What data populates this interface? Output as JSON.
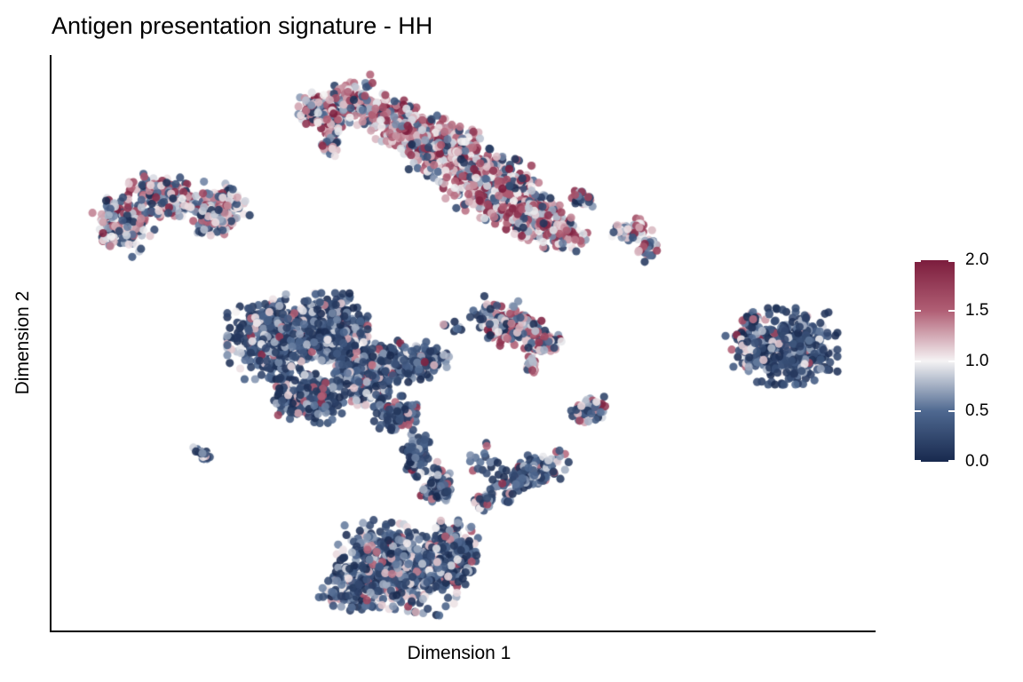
{
  "title": "Antigen presentation signature - HH",
  "axes": {
    "x_label": "Dimension 1",
    "y_label": "Dimension 2",
    "ticks_shown": false
  },
  "colorbar": {
    "orientation": "vertical",
    "min": 0.0,
    "max": 2.0,
    "tick_labels": [
      "2.0",
      "1.5",
      "1.0",
      "0.5",
      "0.0"
    ],
    "tick_values": [
      2.0,
      1.5,
      1.0,
      0.5,
      0.0
    ],
    "stops": [
      {
        "value": 0.0,
        "color": "#18294e"
      },
      {
        "value": 0.5,
        "color": "#4e6890"
      },
      {
        "value": 1.0,
        "color": "#f5f3f4"
      },
      {
        "value": 1.5,
        "color": "#b05e74"
      },
      {
        "value": 2.0,
        "color": "#7c1d3d"
      }
    ]
  },
  "chart_data": {
    "type": "scatter",
    "title": "Antigen presentation signature - HH",
    "xlabel": "Dimension 1",
    "ylabel": "Dimension 2",
    "legend_position": "right",
    "grid": false,
    "point_radius_px": 4.6,
    "point_alpha": 0.88,
    "color_value_range": [
      0.0,
      2.0
    ],
    "value_bins": [
      [
        0.0,
        0.4
      ],
      [
        0.4,
        0.8
      ],
      [
        0.8,
        1.2
      ],
      [
        1.2,
        1.6
      ],
      [
        1.6,
        2.0
      ]
    ],
    "profiles": {
      "dark": [
        0.6,
        0.24,
        0.1,
        0.04,
        0.02
      ],
      "dark_solid": [
        0.72,
        0.2,
        0.05,
        0.02,
        0.01
      ],
      "dark_med": [
        0.48,
        0.3,
        0.14,
        0.06,
        0.02
      ],
      "dark_mix": [
        0.42,
        0.26,
        0.16,
        0.12,
        0.04
      ],
      "mixed": [
        0.22,
        0.2,
        0.27,
        0.19,
        0.12
      ],
      "mixed_edge": [
        0.35,
        0.25,
        0.25,
        0.1,
        0.05
      ],
      "red_mix": [
        0.12,
        0.14,
        0.24,
        0.28,
        0.22
      ],
      "red_mix_light": [
        0.18,
        0.17,
        0.27,
        0.23,
        0.15
      ]
    },
    "clusters": [
      {
        "name": "top-main-high-signature",
        "profile": "red_mix",
        "blobs": [
          [
            383,
            120,
            42,
            26,
            -15,
            230
          ],
          [
            352,
            122,
            16,
            16,
            0,
            60
          ],
          [
            374,
            158,
            11,
            22,
            5,
            50
          ],
          [
            448,
            138,
            42,
            26,
            20,
            240
          ],
          [
            505,
            172,
            52,
            34,
            22,
            420
          ],
          [
            555,
            210,
            52,
            38,
            22,
            450
          ],
          [
            600,
            245,
            40,
            28,
            22,
            260
          ],
          [
            636,
            264,
            24,
            16,
            15,
            90
          ],
          [
            712,
            258,
            24,
            13,
            -25,
            60
          ],
          [
            731,
            281,
            11,
            15,
            15,
            35
          ]
        ]
      },
      {
        "name": "left-crescent",
        "profile": "mixed",
        "blobs": [
          [
            137,
            252,
            34,
            28,
            35,
            200
          ],
          [
            186,
            222,
            42,
            24,
            5,
            240
          ],
          [
            246,
            238,
            32,
            26,
            -28,
            190
          ]
        ]
      },
      {
        "name": "small-t-blob",
        "profile": "mixed",
        "blobs": [
          [
            655,
            224,
            16,
            11,
            40,
            30
          ]
        ]
      },
      {
        "name": "center-left-large-low-signature",
        "profile": "dark",
        "blobs": [
          [
            308,
            382,
            52,
            45,
            0,
            560
          ],
          [
            368,
            368,
            46,
            38,
            0,
            430
          ],
          [
            415,
            418,
            42,
            38,
            0,
            360
          ],
          [
            345,
            448,
            42,
            26,
            8,
            250
          ],
          [
            468,
            408,
            38,
            20,
            -12,
            170
          ],
          [
            445,
            468,
            24,
            22,
            0,
            130
          ],
          [
            468,
            512,
            15,
            24,
            12,
            70
          ],
          [
            488,
            552,
            13,
            20,
            8,
            45
          ],
          [
            560,
            352,
            48,
            20,
            0,
            30
          ],
          [
            512,
            368,
            16,
            10,
            0,
            10
          ]
        ]
      },
      {
        "name": "center-small-mixed",
        "profile": "red_mix_light",
        "blobs": [
          [
            573,
            369,
            40,
            20,
            -6,
            170
          ],
          [
            612,
            387,
            22,
            13,
            -18,
            70
          ],
          [
            599,
            410,
            9,
            13,
            0,
            25
          ]
        ]
      },
      {
        "name": "small-blue-blob",
        "profile": "dark_mix",
        "blobs": [
          [
            664,
            461,
            24,
            13,
            -12,
            65
          ]
        ]
      },
      {
        "name": "right-cluster-low-signature",
        "profile": "dark_solid",
        "blobs": [
          [
            893,
            390,
            50,
            43,
            0,
            430
          ]
        ]
      },
      {
        "name": "right-cluster-light-edge",
        "profile": "mixed_edge",
        "blobs": [
          [
            840,
            386,
            23,
            27,
            0,
            80
          ],
          [
            845,
            360,
            16,
            9,
            -20,
            25
          ]
        ]
      },
      {
        "name": "left-tiny-chain",
        "profile": "dark",
        "blobs": [
          [
            229,
            512,
            15,
            6,
            32,
            22
          ]
        ]
      },
      {
        "name": "bottom-cluster-low-signature",
        "profile": "dark_med",
        "blobs": [
          [
            448,
            638,
            70,
            48,
            8,
            620
          ],
          [
            508,
            622,
            34,
            36,
            0,
            220
          ],
          [
            400,
            665,
            40,
            25,
            5,
            150
          ]
        ]
      },
      {
        "name": "bridge-and-cross-arms",
        "profile": "dark_med",
        "blobs": [
          [
            498,
            543,
            11,
            26,
            -18,
            45
          ],
          [
            596,
            534,
            46,
            20,
            -24,
            150
          ],
          [
            548,
            562,
            22,
            11,
            -28,
            40
          ],
          [
            548,
            518,
            26,
            20,
            0,
            18
          ]
        ]
      }
    ]
  }
}
